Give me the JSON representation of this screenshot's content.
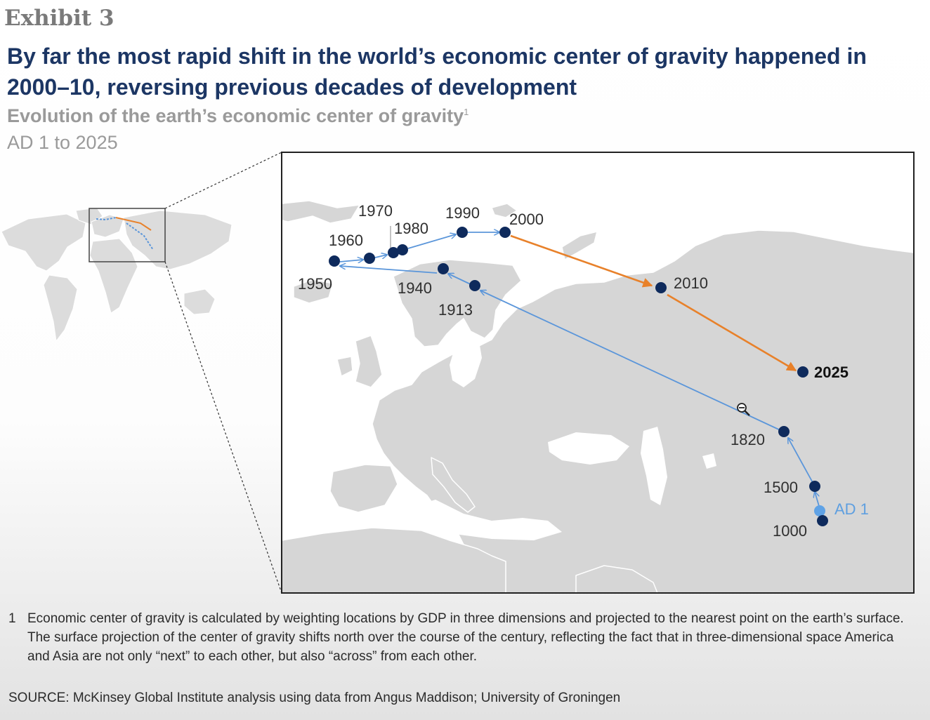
{
  "exhibit_label": "Exhibit 3",
  "headline": "By far the most rapid shift in the world’s economic center of gravity happened in 2000–10, reversing previous decades of development",
  "subtitle": "Evolution of the earth’s economic center of gravity",
  "subtitle_footnote_marker": "1",
  "period": "AD 1 to 2025",
  "colors": {
    "historic_path": "#5b96da",
    "recent_path": "#e8812a",
    "point": "#0e2a5c",
    "ad1_point": "#5fa2e6",
    "land": "#d6d6d6",
    "headline": "#1c3664"
  },
  "icons": {
    "cursor": "zoom-out-icon"
  },
  "map": {
    "points": [
      {
        "label": "AD 1",
        "lat": 51,
        "lon": 81,
        "segment": "historic",
        "style": "light"
      },
      {
        "label": "1000",
        "lat": 50,
        "lon": 81,
        "segment": "historic",
        "style": "normal"
      },
      {
        "label": "1500",
        "lat": 53,
        "lon": 80,
        "segment": "historic",
        "style": "normal"
      },
      {
        "label": "1820",
        "lat": 57,
        "lon": 79,
        "segment": "historic",
        "style": "normal"
      },
      {
        "label": "1913",
        "lat": 66,
        "lon": 18,
        "segment": "historic",
        "style": "normal"
      },
      {
        "label": "1940",
        "lat": 67,
        "lon": 12,
        "segment": "historic",
        "style": "normal"
      },
      {
        "label": "1950",
        "lat": 67,
        "lon": -23,
        "segment": "historic",
        "style": "normal"
      },
      {
        "label": "1960",
        "lat": 67,
        "lon": -17,
        "segment": "historic",
        "style": "normal"
      },
      {
        "label": "1970",
        "lat": 68,
        "lon": -12,
        "segment": "historic",
        "style": "normal"
      },
      {
        "label": "1980",
        "lat": 68,
        "lon": -10,
        "segment": "historic",
        "style": "normal"
      },
      {
        "label": "1990",
        "lat": 70,
        "lon": 5,
        "segment": "historic",
        "style": "normal"
      },
      {
        "label": "2000",
        "lat": 70,
        "lon": 12,
        "segment": "historic",
        "style": "normal"
      },
      {
        "label": "2010",
        "lat": 66,
        "lon": 47,
        "segment": "recent",
        "style": "normal"
      },
      {
        "label": "2025",
        "lat": 62,
        "lon": 77,
        "segment": "recent",
        "style": "bold"
      }
    ]
  },
  "footnote": {
    "number": "1",
    "text": "Economic center of gravity is calculated by weighting locations by GDP in three dimensions and projected to the nearest point on the earth’s surface. The surface projection of the center of gravity shifts north over the course of the century, reflecting the fact that in three-dimensional space America and Asia are not only “next” to each other, but also “across” from each other."
  },
  "source": "SOURCE: McKinsey Global Institute analysis using data from Angus Maddison; University of Groningen"
}
